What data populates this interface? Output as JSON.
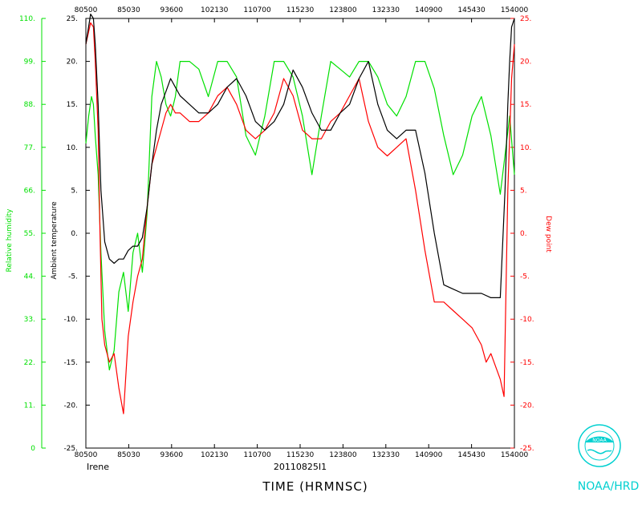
{
  "chart_data": {
    "type": "line",
    "xlabel": "TIME (HRMNSC)",
    "storm": "Irene",
    "flight_id": "20110825I1",
    "x_ticks": [
      "80500",
      "85030",
      "93600",
      "102130",
      "110700",
      "115230",
      "123800",
      "132330",
      "140900",
      "145430",
      "154000"
    ],
    "y_left_ticks": [
      "25.",
      "20.",
      "15.",
      "10.",
      "5.",
      "0.",
      "-5.",
      "-10.",
      "-15.",
      "-20.",
      "-25."
    ],
    "y_right_ticks": [
      "25.",
      "20.",
      "15.",
      "10.",
      "5.",
      "0.",
      "-5.",
      "-10.",
      "-15.",
      "-20.",
      "-25."
    ],
    "rh_ticks": [
      "110.",
      "99.",
      "88.",
      "77.",
      "66.",
      "55.",
      "44.",
      "33.",
      "22.",
      "11.",
      "0"
    ],
    "ylim": [
      -25,
      25
    ],
    "rh_lim": [
      0,
      110
    ],
    "xlim_minutes": [
      0,
      455
    ],
    "colors": {
      "temperature": "#000000",
      "dewpoint": "#ff0000",
      "humidity": "#00e000",
      "logo": "#00d0d0"
    },
    "axis_titles": {
      "temperature": "Ambient temperature",
      "dewpoint": "Dew point",
      "humidity": "Relative humidity"
    },
    "series": [
      {
        "name": "Ambient temperature",
        "color": "#000000",
        "x": [
          0,
          5,
          8,
          10,
          13,
          16,
          20,
          25,
          30,
          35,
          40,
          45,
          50,
          55,
          60,
          65,
          70,
          75,
          80,
          85,
          90,
          95,
          100,
          110,
          120,
          130,
          140,
          150,
          160,
          170,
          180,
          190,
          200,
          210,
          220,
          230,
          240,
          250,
          260,
          270,
          280,
          290,
          300,
          310,
          320,
          330,
          340,
          350,
          360,
          370,
          380,
          390,
          400,
          410,
          420,
          430,
          440,
          445,
          448,
          450,
          452,
          455
        ],
        "y": [
          22,
          25.5,
          25,
          22,
          15,
          5,
          -1,
          -3,
          -3.5,
          -3,
          -3,
          -2,
          -1.5,
          -1.5,
          -0.5,
          3,
          8,
          12,
          15,
          16.5,
          18,
          17,
          16,
          15,
          14,
          14,
          15,
          17,
          18,
          16,
          13,
          12,
          13,
          15,
          19,
          17,
          14,
          12,
          12,
          14,
          15,
          18,
          20,
          15,
          12,
          11,
          12,
          12,
          7,
          0,
          -6,
          -6.5,
          -7,
          -7,
          -7,
          -7.5,
          -7.5,
          5,
          15,
          20,
          24,
          25
        ]
      },
      {
        "name": "Dew point",
        "color": "#ff0000",
        "x": [
          0,
          5,
          8,
          10,
          13,
          15,
          17,
          20,
          25,
          30,
          35,
          40,
          45,
          50,
          55,
          60,
          65,
          70,
          75,
          80,
          85,
          90,
          95,
          100,
          110,
          120,
          130,
          140,
          150,
          160,
          170,
          180,
          190,
          200,
          210,
          220,
          230,
          240,
          250,
          260,
          270,
          280,
          290,
          300,
          310,
          320,
          330,
          340,
          350,
          360,
          370,
          380,
          390,
          400,
          410,
          420,
          425,
          430,
          440,
          444,
          448,
          452,
          455
        ],
        "y": [
          22,
          24.5,
          24,
          20,
          12,
          0,
          -10,
          -13,
          -15,
          -14,
          -18,
          -21,
          -12,
          -8,
          -5,
          -3,
          3,
          8,
          10,
          12,
          14,
          15,
          14,
          14,
          13,
          13,
          14,
          16,
          17,
          15,
          12,
          11,
          12,
          14,
          18,
          16,
          12,
          11,
          11,
          13,
          14,
          16,
          18,
          13,
          10,
          9,
          10,
          11,
          5,
          -2,
          -8,
          -8,
          -9,
          -10,
          -11,
          -13,
          -15,
          -14,
          -17,
          -19,
          5,
          18,
          22
        ]
      },
      {
        "name": "Relative humidity",
        "color": "#00e000",
        "x": [
          0,
          3,
          6,
          8,
          10,
          13,
          16,
          20,
          25,
          30,
          35,
          40,
          45,
          50,
          55,
          60,
          65,
          70,
          75,
          80,
          85,
          90,
          95,
          100,
          110,
          120,
          130,
          140,
          150,
          160,
          170,
          180,
          190,
          200,
          210,
          220,
          230,
          240,
          250,
          260,
          270,
          280,
          290,
          300,
          310,
          320,
          330,
          340,
          350,
          360,
          370,
          380,
          390,
          400,
          410,
          420,
          430,
          440,
          445,
          450,
          455
        ],
        "y": [
          78,
          85,
          90,
          88,
          80,
          70,
          50,
          30,
          20,
          25,
          40,
          45,
          35,
          50,
          55,
          45,
          60,
          90,
          99,
          95,
          88,
          85,
          90,
          99,
          99,
          97,
          90,
          99,
          99,
          95,
          80,
          75,
          85,
          99,
          99,
          95,
          85,
          70,
          85,
          99,
          97,
          95,
          99,
          99,
          95,
          88,
          85,
          90,
          99,
          99,
          92,
          80,
          70,
          75,
          85,
          90,
          80,
          65,
          75,
          85,
          70
        ]
      }
    ]
  },
  "brand": {
    "logo_text": "NOAA",
    "org_label": "NOAA/HRD"
  }
}
